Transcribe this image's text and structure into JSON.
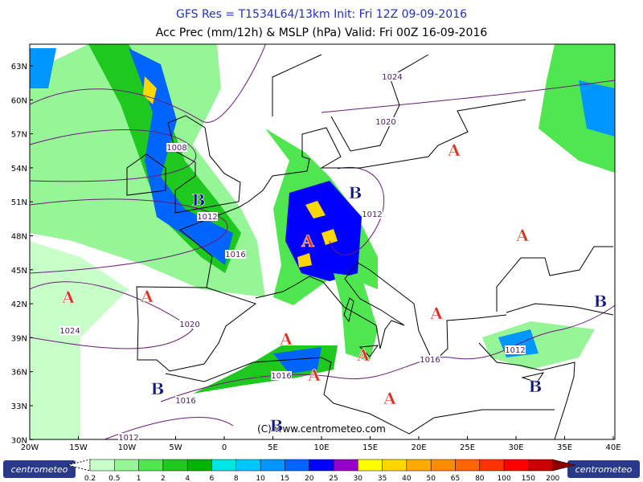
{
  "header": {
    "title": "GFS Res = T1534L64/13km   Init: Fri 12Z 09-09-2016",
    "subtitle": "Acc Prec (mm/12h) & MSLP (hPa)  Valid: Fri 00Z 16-09-2016"
  },
  "map": {
    "lat_labels": [
      "63N",
      "60N",
      "57N",
      "54N",
      "51N",
      "48N",
      "45N",
      "42N",
      "39N",
      "36N",
      "33N",
      "30N"
    ],
    "lon_labels": [
      "20W",
      "15W",
      "10W",
      "5W",
      "0",
      "5E",
      "10E",
      "15E",
      "20E",
      "25E",
      "30E",
      "35E",
      "40E"
    ],
    "isobar_labels": [
      "1024",
      "1020",
      "1008",
      "1012",
      "1012",
      "1016",
      "1024",
      "1020",
      "1016",
      "1016",
      "1016",
      "1012",
      "1012"
    ],
    "pressure_centers": [
      "A",
      "A",
      "A",
      "A",
      "A",
      "A",
      "A",
      "A",
      "A",
      "A",
      "B",
      "B",
      "B",
      "B",
      "B",
      "B"
    ],
    "copyright": "(C) www.centrometeo.com"
  },
  "colorbar": {
    "labels": [
      "0.2",
      "0.5",
      "1",
      "2",
      "4",
      "6",
      "8",
      "10",
      "15",
      "20",
      "25",
      "30",
      "35",
      "40",
      "50",
      "65",
      "80",
      "100",
      "150",
      "200"
    ],
    "colors": [
      "#c8ffc8",
      "#96f596",
      "#50e650",
      "#1ec81e",
      "#00b400",
      "#00e6e6",
      "#00c8ff",
      "#0096ff",
      "#0064ff",
      "#0000ff",
      "#9600c8",
      "#ffff00",
      "#ffd700",
      "#ffaa00",
      "#ff8c00",
      "#ff6400",
      "#ff3200",
      "#ff0000",
      "#c80000",
      "#8c0000"
    ]
  },
  "footer": {
    "logo_left": "centrometeo",
    "logo_right": "centrometeo"
  }
}
